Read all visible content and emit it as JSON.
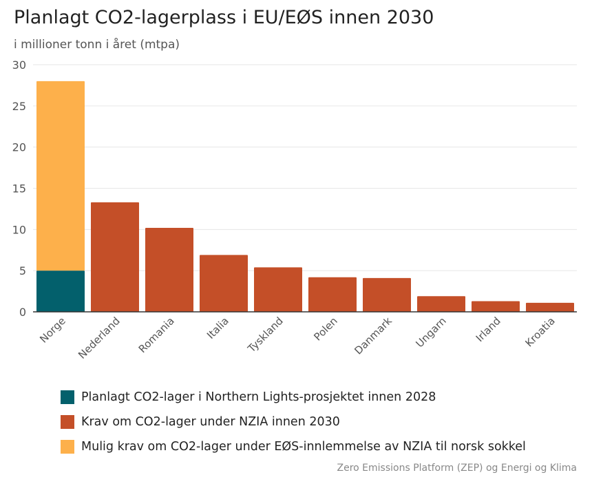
{
  "chart_data": {
    "type": "bar",
    "stacked": true,
    "title": "Planlagt CO2-lagerplass i EU/EØS innen 2030",
    "subtitle": "i millioner tonn i året (mtpa)",
    "categories": [
      "Norge",
      "Nederland",
      "Romania",
      "Italia",
      "Tyskland",
      "Polen",
      "Danmark",
      "Ungarn",
      "Irland",
      "Kroatia"
    ],
    "series": [
      {
        "name": "Planlagt CO2-lager i Northern Lights-prosjektet innen 2028",
        "color": "#03606c",
        "values": [
          5,
          0,
          0,
          0,
          0,
          0,
          0,
          0,
          0,
          0
        ]
      },
      {
        "name": "Krav om CO2-lager under NZIA innen 2030",
        "color": "#c44f28",
        "values": [
          0,
          13.3,
          10.2,
          6.9,
          5.4,
          4.2,
          4.1,
          1.9,
          1.3,
          1.1
        ]
      },
      {
        "name": "Mulig krav om CO2-lager under EØS-innlemmelse av NZIA til norsk sokkel",
        "color": "#fdb04b",
        "values": [
          23,
          0,
          0,
          0,
          0,
          0,
          0,
          0,
          0,
          0
        ]
      }
    ],
    "ylim": [
      0,
      30
    ],
    "yticks": [
      0,
      5,
      10,
      15,
      20,
      25,
      30
    ],
    "grid": true,
    "legend": "bottom",
    "source": "Zero Emissions Platform (ZEP) og Energi og Klima"
  }
}
